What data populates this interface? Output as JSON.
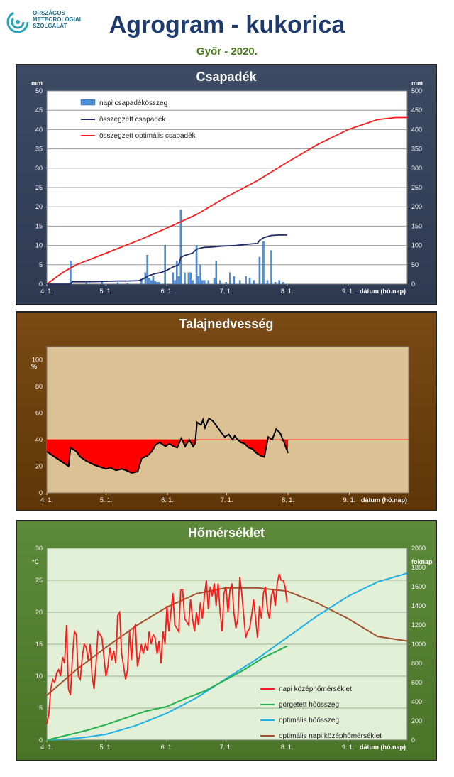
{
  "header": {
    "logo_lines": [
      "ORSZÁGOS",
      "METEOROLÓGIAI",
      "SZOLGÁLAT"
    ],
    "title": "Agrogram - kukorica",
    "subtitle": "Győr - 2020."
  },
  "colors": {
    "precip_bar": "#4f8fd6",
    "cum_precip": "#1f2a66",
    "opt_precip": "#ff1a1a",
    "soil_fill": "#ff0000",
    "soil_line": "#000000",
    "temp": "#ff1a1a",
    "gdd": "#22b04a",
    "opt_gdd": "#1fb0e8",
    "opt_temp": "#a0522d"
  },
  "chart_data": [
    {
      "type": "bar",
      "title": "Csapadék",
      "xlabel": "dátum (hó.nap)",
      "ylabel": "mm",
      "y2label": "mm",
      "xticks": [
        "4. 1.",
        "5. 1.",
        "6. 1.",
        "7. 1.",
        "8. 1.",
        "9. 1."
      ],
      "xticks_day": [
        0,
        30,
        61,
        91,
        122,
        153
      ],
      "xlim": [
        0,
        183
      ],
      "ylim": [
        0,
        50
      ],
      "y2lim": [
        0,
        500
      ],
      "yticks": [
        0,
        5,
        10,
        15,
        20,
        25,
        30,
        35,
        40,
        45,
        50
      ],
      "y2ticks": [
        0,
        50,
        100,
        150,
        200,
        250,
        300,
        350,
        400,
        450,
        500
      ],
      "grid": true,
      "legend": "top-left",
      "series": [
        {
          "name": "napi csapadékösszeg",
          "kind": "bar",
          "axis": "left",
          "x": [
            12,
            20,
            28,
            36,
            41,
            48,
            50,
            51,
            52,
            53,
            54,
            55,
            56,
            57,
            60,
            64,
            65,
            66,
            67,
            68,
            70,
            72,
            73,
            74,
            76,
            77,
            78,
            79,
            80,
            82,
            85,
            86,
            88,
            91,
            93,
            95,
            98,
            101,
            103,
            105,
            108,
            110,
            112,
            114,
            116,
            118,
            120
          ],
          "values": [
            6,
            0.3,
            0.5,
            0.4,
            0.3,
            1.3,
            3,
            7.5,
            1.5,
            1,
            2,
            0.8,
            0.5,
            0.5,
            10,
            3,
            1,
            6,
            2,
            19.3,
            3,
            3,
            3,
            1,
            10,
            2,
            5,
            1,
            1,
            1,
            1.5,
            6,
            1,
            0.5,
            3,
            2,
            1,
            2,
            1.5,
            1,
            7,
            11,
            1,
            8.7,
            0.5,
            1,
            0.5
          ]
        },
        {
          "name": "összegzett csapadék",
          "kind": "line",
          "axis": "right",
          "x": [
            0,
            12,
            13,
            20,
            28,
            36,
            41,
            47,
            49,
            52,
            55,
            58,
            61,
            64,
            67,
            68,
            70,
            72,
            74,
            76,
            78,
            80,
            84,
            88,
            92,
            96,
            100,
            104,
            107,
            108,
            110,
            112,
            114,
            118,
            122
          ],
          "values": [
            0,
            0,
            6,
            6,
            7,
            8,
            8,
            9,
            14,
            22,
            27,
            30,
            36,
            44,
            50,
            69,
            74,
            77,
            80,
            90,
            93,
            95,
            96,
            98,
            99,
            100,
            102,
            104,
            105,
            113,
            120,
            123,
            126,
            127,
            127
          ]
        },
        {
          "name": "összegzett optimális csapadék",
          "kind": "line",
          "axis": "right",
          "x": [
            0,
            8,
            15,
            30,
            46,
            61,
            76,
            91,
            107,
            122,
            137,
            153,
            168,
            177,
            183
          ],
          "values": [
            0,
            30,
            50,
            80,
            112,
            145,
            180,
            225,
            268,
            315,
            360,
            400,
            426,
            431,
            431
          ]
        }
      ]
    },
    {
      "type": "line",
      "title": "Talajnedvesség",
      "xlabel": "dátum (hó.nap)",
      "ylabel": "%",
      "xticks": [
        "4. 1.",
        "5. 1.",
        "6. 1.",
        "7. 1.",
        "8. 1.",
        "9. 1."
      ],
      "xticks_day": [
        0,
        30,
        61,
        91,
        122,
        153
      ],
      "xlim": [
        0,
        183
      ],
      "ylim": [
        0,
        110
      ],
      "yticks": [
        0,
        20,
        40,
        60,
        80,
        100
      ],
      "grid": false,
      "threshold": 40,
      "series": [
        {
          "name": "",
          "x": [
            0,
            4,
            8,
            11,
            12,
            15,
            17,
            20,
            24,
            28,
            30,
            32,
            35,
            38,
            40,
            43,
            46,
            48,
            51,
            53,
            55,
            57,
            59,
            60,
            62,
            64,
            66,
            68,
            70,
            72,
            74,
            75,
            76,
            78,
            79,
            80,
            82,
            84,
            86,
            88,
            90,
            92,
            94,
            95,
            96,
            98,
            100,
            102,
            104,
            106,
            108,
            110,
            112,
            114,
            116,
            118,
            120,
            122
          ],
          "values": [
            31,
            27,
            23,
            20,
            34,
            31,
            27,
            24,
            21,
            19,
            18,
            19,
            17,
            18,
            17,
            15,
            16,
            26,
            28,
            31,
            36,
            38,
            36,
            35,
            37,
            35,
            34,
            41,
            35,
            40,
            35,
            37,
            53,
            51,
            55,
            49,
            56,
            54,
            50,
            46,
            42,
            44,
            40,
            43,
            41,
            38,
            37,
            34,
            33,
            30,
            28,
            27,
            42,
            40,
            48,
            45,
            38,
            30
          ]
        }
      ]
    },
    {
      "type": "line",
      "title": "Hőmérséklet",
      "xlabel": "dátum (hó.nap)",
      "ylabel": "°C",
      "y2label": "foknap",
      "xticks": [
        "4. 1.",
        "5. 1.",
        "6. 1.",
        "7. 1.",
        "8. 1.",
        "9. 1."
      ],
      "xticks_day": [
        0,
        30,
        61,
        91,
        122,
        153
      ],
      "xlim": [
        0,
        183
      ],
      "ylim": [
        0,
        30
      ],
      "y2lim": [
        0,
        2000
      ],
      "yticks": [
        0,
        5,
        10,
        15,
        20,
        25,
        30
      ],
      "y2ticks": [
        0,
        200,
        400,
        600,
        800,
        1000,
        1200,
        1400,
        1600,
        1800,
        2000
      ],
      "grid": true,
      "legend": "bottom-right",
      "series": [
        {
          "name": "napi középhőmérséklet",
          "axis": "left",
          "x": [
            0,
            1,
            2,
            3,
            4,
            5,
            6,
            7,
            8,
            9,
            10,
            11,
            12,
            13,
            14,
            15,
            16,
            17,
            18,
            19,
            20,
            21,
            22,
            23,
            24,
            25,
            26,
            27,
            28,
            29,
            30,
            31,
            32,
            33,
            34,
            35,
            36,
            37,
            38,
            39,
            40,
            41,
            42,
            43,
            44,
            45,
            46,
            47,
            48,
            49,
            50,
            51,
            52,
            53,
            54,
            55,
            56,
            57,
            58,
            59,
            60,
            61,
            62,
            63,
            64,
            65,
            66,
            67,
            68,
            69,
            70,
            71,
            72,
            73,
            74,
            75,
            76,
            77,
            78,
            79,
            80,
            81,
            82,
            83,
            84,
            85,
            86,
            87,
            88,
            89,
            90,
            91,
            92,
            93,
            94,
            95,
            96,
            97,
            98,
            99,
            100,
            101,
            102,
            103,
            104,
            105,
            106,
            107,
            108,
            109,
            110,
            111,
            112,
            113,
            114,
            115,
            116,
            117,
            118,
            119,
            120,
            121,
            122
          ],
          "values": [
            2.5,
            4,
            8,
            9.5,
            9,
            10.5,
            11,
            10,
            13,
            12,
            18,
            8,
            7,
            13,
            17,
            16.5,
            10,
            9.5,
            13,
            15,
            14.5,
            12.5,
            15,
            10,
            8,
            12,
            17,
            16.5,
            16,
            13,
            10,
            11.5,
            14.5,
            12.5,
            14,
            12,
            19.5,
            20,
            13.5,
            11.5,
            9.5,
            11,
            17,
            12.5,
            17.5,
            18,
            11.5,
            13,
            15,
            13.5,
            15,
            14,
            17,
            15,
            16.5,
            16,
            13.5,
            15.5,
            12,
            17,
            15,
            21,
            17,
            20,
            23,
            18,
            17.5,
            17,
            23.5,
            23.5,
            19,
            18.5,
            18,
            22,
            19,
            17,
            20,
            18,
            21.5,
            19,
            22.5,
            25,
            20.5,
            24,
            22.5,
            24.5,
            21,
            24.5,
            20,
            17,
            23,
            24,
            20,
            23.5,
            24.5,
            20,
            17.5,
            19,
            25.5,
            23,
            19.5,
            16,
            17,
            17.5,
            19.5,
            22,
            19,
            16,
            21,
            19,
            23,
            24,
            20.5,
            19,
            22.5,
            23.5,
            21,
            24.5,
            26,
            25,
            25,
            24,
            21.5
          ]
        },
        {
          "name": "görgetett hőösszeg",
          "axis": "right",
          "x": [
            0,
            10,
            20,
            30,
            40,
            50,
            61,
            70,
            80,
            91,
            100,
            110,
            122
          ],
          "values": [
            0,
            50,
            100,
            160,
            230,
            300,
            350,
            430,
            510,
            630,
            730,
            860,
            980
          ]
        },
        {
          "name": "optimális hőösszeg",
          "axis": "right",
          "x": [
            0,
            10,
            20,
            30,
            45,
            61,
            76,
            91,
            107,
            122,
            137,
            153,
            168,
            183
          ],
          "values": [
            0,
            10,
            30,
            60,
            150,
            280,
            440,
            640,
            850,
            1070,
            1290,
            1500,
            1650,
            1740
          ]
        },
        {
          "name": "optimális napi középhőmérséklet",
          "axis": "left",
          "x": [
            0,
            15,
            30,
            46,
            61,
            76,
            91,
            107,
            122,
            137,
            153,
            168,
            183
          ],
          "values": [
            7,
            11,
            14.5,
            18,
            20.8,
            22.9,
            23.8,
            23.8,
            23.3,
            21.5,
            19,
            16.2,
            15.5
          ]
        }
      ]
    }
  ]
}
